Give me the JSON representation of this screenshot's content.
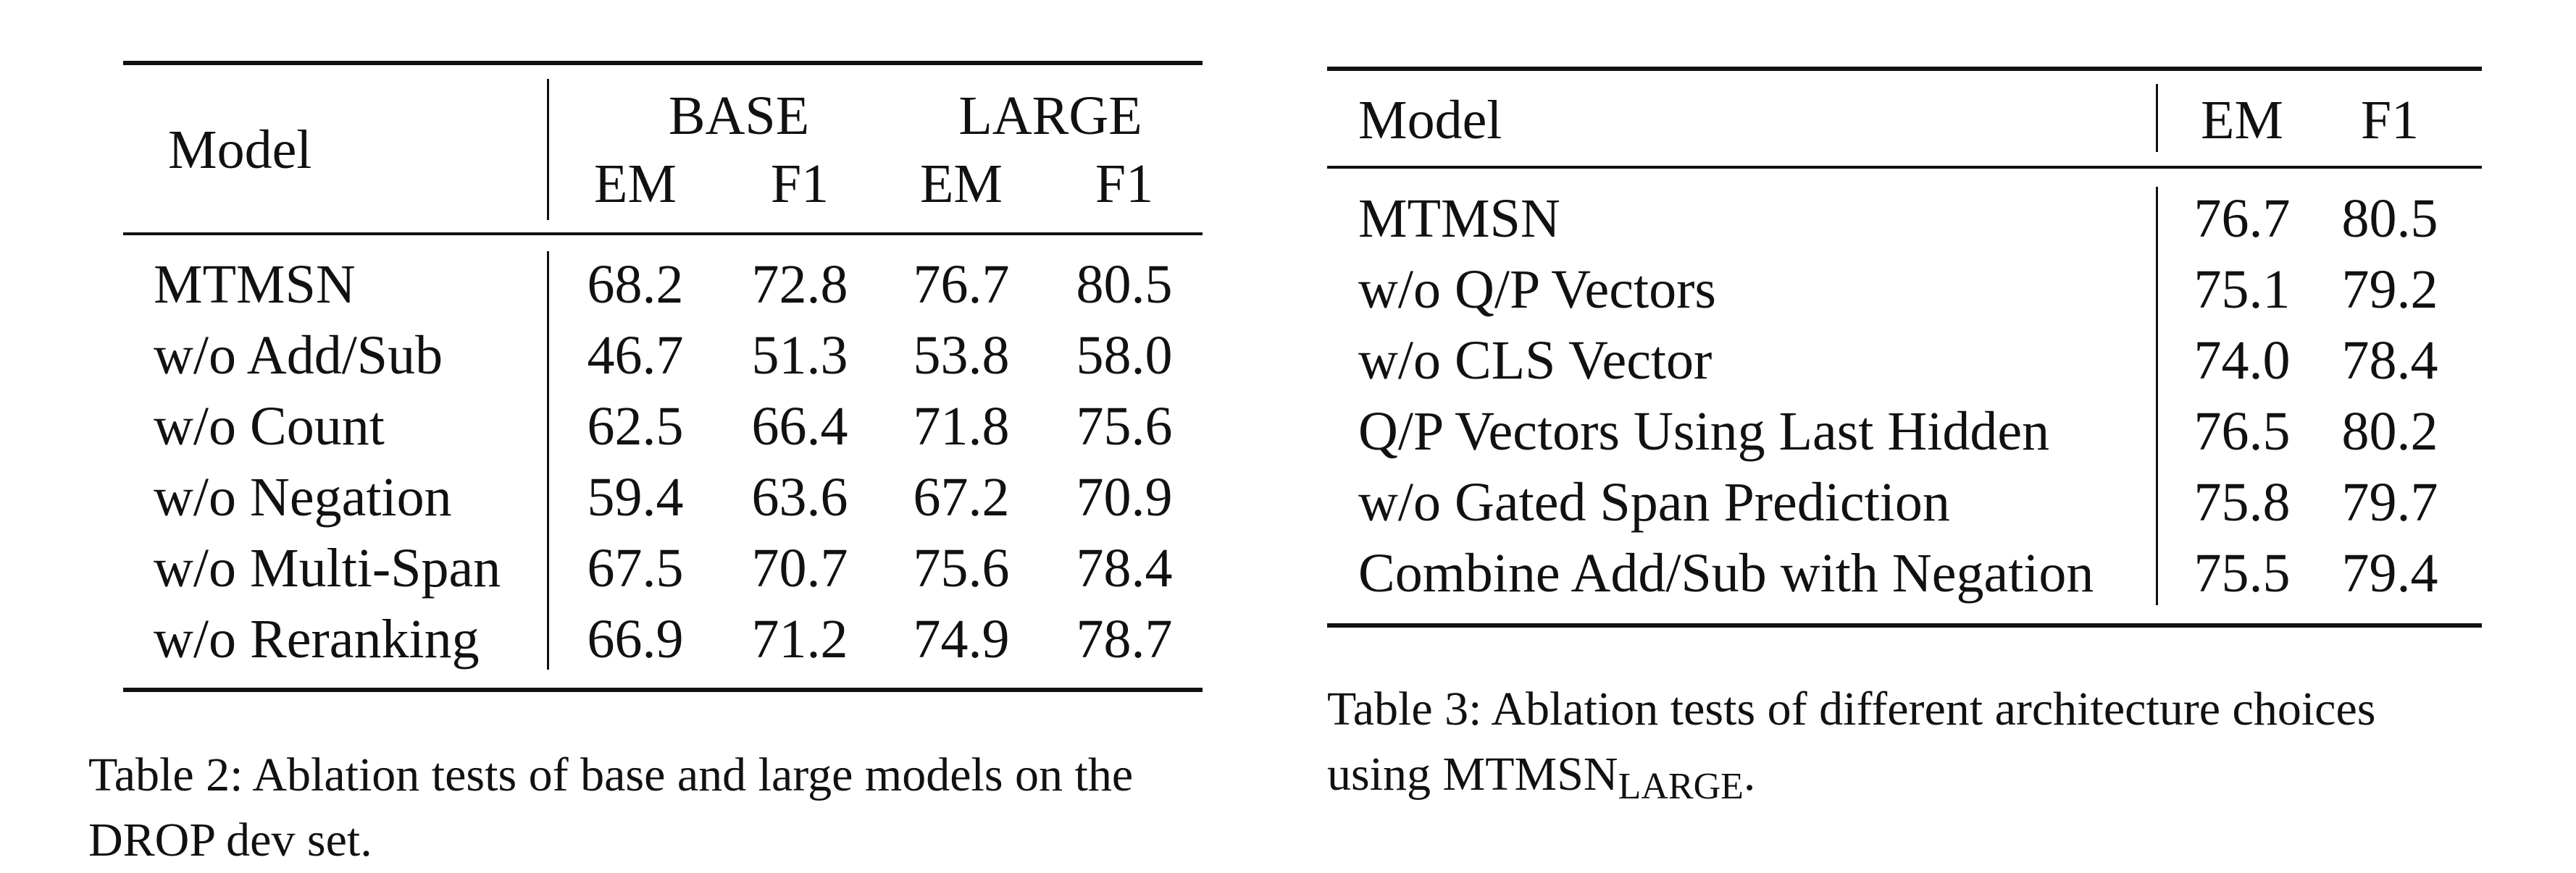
{
  "table2": {
    "header": {
      "model": "Model",
      "groups": [
        "BASE",
        "LARGE"
      ],
      "subcols": [
        "EM",
        "F1",
        "EM",
        "F1"
      ]
    },
    "rows": [
      {
        "model": "MTMSN",
        "values": [
          "68.2",
          "72.8",
          "76.7",
          "80.5"
        ]
      },
      {
        "model": "w/o Add/Sub",
        "values": [
          "46.7",
          "51.3",
          "53.8",
          "58.0"
        ]
      },
      {
        "model": "w/o Count",
        "values": [
          "62.5",
          "66.4",
          "71.8",
          "75.6"
        ]
      },
      {
        "model": "w/o Negation",
        "values": [
          "59.4",
          "63.6",
          "67.2",
          "70.9"
        ]
      },
      {
        "model": "w/o Multi-Span",
        "values": [
          "67.5",
          "70.7",
          "75.6",
          "78.4"
        ]
      },
      {
        "model": "w/o Reranking",
        "values": [
          "66.9",
          "71.2",
          "74.9",
          "78.7"
        ]
      }
    ],
    "caption_line1": "Table 2:  Ablation tests of base and large models on the",
    "caption_line2": "DROP dev set."
  },
  "table3": {
    "header": {
      "model": "Model",
      "cols": [
        "EM",
        "F1"
      ]
    },
    "rows": [
      {
        "model": "MTMSN",
        "values": [
          "76.7",
          "80.5"
        ]
      },
      {
        "model": "w/o Q/P Vectors",
        "values": [
          "75.1",
          "79.2"
        ]
      },
      {
        "model": "w/o CLS Vector",
        "values": [
          "74.0",
          "78.4"
        ]
      },
      {
        "model": "Q/P Vectors Using Last Hidden",
        "values": [
          "76.5",
          "80.2"
        ]
      },
      {
        "model": "w/o Gated Span Prediction",
        "values": [
          "75.8",
          "79.7"
        ]
      },
      {
        "model": "Combine Add/Sub with Negation",
        "values": [
          "75.5",
          "79.4"
        ]
      }
    ],
    "caption_line1": "Table 3:  Ablation tests of different architecture choices",
    "caption_line2_prefix": "using MTMSN",
    "caption_line2_sub": "LARGE",
    "caption_line2_suffix": "."
  }
}
